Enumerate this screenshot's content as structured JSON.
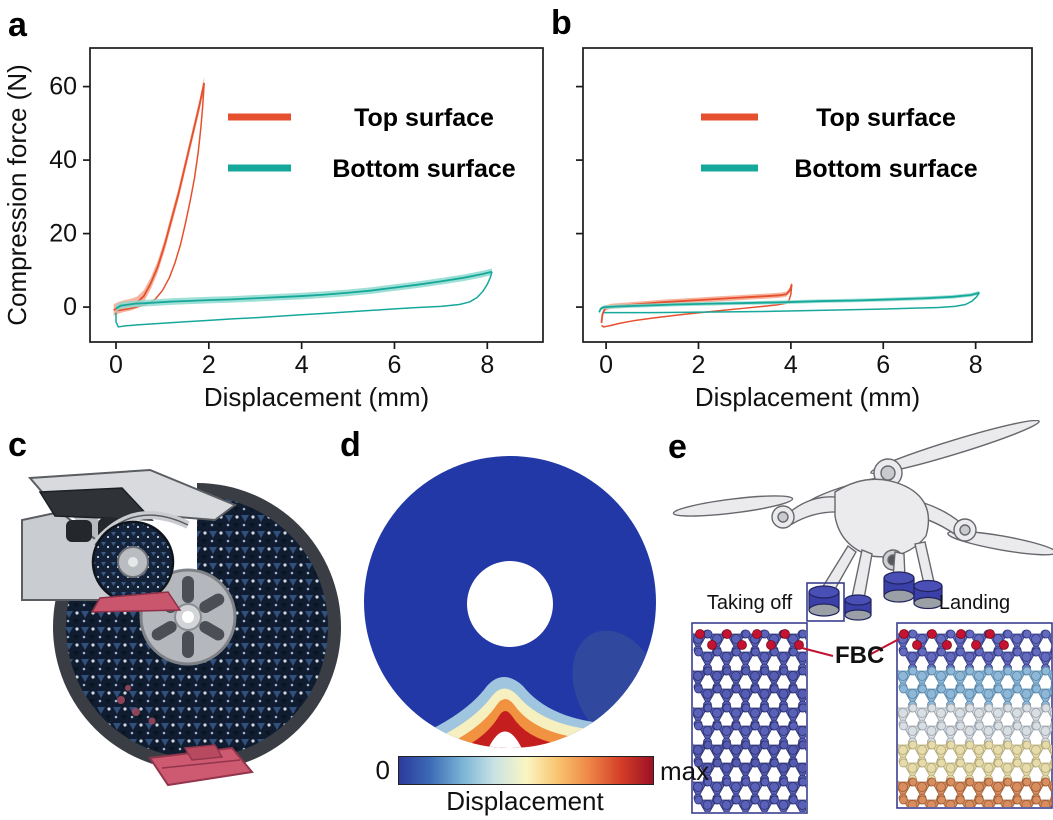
{
  "panel_labels": {
    "a": "a",
    "b": "b",
    "c": "c",
    "d": "d",
    "e": "e"
  },
  "colors": {
    "top_surface": "#e6502e",
    "top_band": "#f5a78f",
    "bottom_surface": "#16a89a",
    "bottom_band": "#8edacf",
    "fbc_red": "#c41230",
    "box_navy": "#3a3f8f",
    "foot_blue": "#3b3fa8",
    "tire_navy": "#101d30",
    "ramp_red": "#cd5a70",
    "fea_blue": "#2138a6"
  },
  "chart_data": [
    {
      "panel": "a",
      "type": "line",
      "title": "",
      "xlabel": "Displacement (mm)",
      "ylabel": "Compression force (N)",
      "xlim": [
        -0.56,
        9.2
      ],
      "ylim": [
        -9.5,
        70.5
      ],
      "xticks": [
        0,
        2,
        4,
        6,
        8
      ],
      "yticks": [
        0,
        20,
        40,
        60
      ],
      "grid": false,
      "legend_position": "upper right inside",
      "series": [
        {
          "name": "Top surface",
          "color": "#e6502e",
          "band_color": "#f5a78f",
          "band": 1.6,
          "loading": [
            [
              -0.05,
              -0.8
            ],
            [
              0.05,
              -0.2
            ],
            [
              0.15,
              0.2
            ],
            [
              0.3,
              0.6
            ],
            [
              0.45,
              1.2
            ],
            [
              0.6,
              3.0
            ],
            [
              0.75,
              6.5
            ],
            [
              0.9,
              11
            ],
            [
              1.05,
              17
            ],
            [
              1.2,
              24
            ],
            [
              1.35,
              31
            ],
            [
              1.5,
              39
            ],
            [
              1.65,
              47
            ],
            [
              1.8,
              55
            ],
            [
              1.9,
              61
            ]
          ],
          "unloading": [
            [
              1.9,
              61
            ],
            [
              1.87,
              55
            ],
            [
              1.83,
              49
            ],
            [
              1.77,
              42
            ],
            [
              1.69,
              35
            ],
            [
              1.6,
              29
            ],
            [
              1.5,
              23
            ],
            [
              1.39,
              17
            ],
            [
              1.27,
              12
            ],
            [
              1.15,
              8
            ],
            [
              1.0,
              4.5
            ],
            [
              0.85,
              2.2
            ],
            [
              0.7,
              1.0
            ],
            [
              0.5,
              0.2
            ],
            [
              0.3,
              -0.4
            ],
            [
              0.12,
              -0.8
            ],
            [
              0.0,
              -1.0
            ]
          ]
        },
        {
          "name": "Bottom surface",
          "color": "#16a89a",
          "band_color": "#8edacf",
          "band": 0.9,
          "loading": [
            [
              0,
              -0.4
            ],
            [
              0.1,
              0.4
            ],
            [
              0.4,
              0.9
            ],
            [
              0.8,
              1.2
            ],
            [
              1.2,
              1.5
            ],
            [
              1.6,
              1.7
            ],
            [
              2.0,
              1.9
            ],
            [
              2.5,
              2.1
            ],
            [
              3.0,
              2.4
            ],
            [
              3.5,
              2.7
            ],
            [
              4.0,
              3.0
            ],
            [
              4.5,
              3.4
            ],
            [
              5.0,
              3.9
            ],
            [
              5.5,
              4.5
            ],
            [
              6.0,
              5.3
            ],
            [
              6.5,
              6.1
            ],
            [
              7.0,
              7.0
            ],
            [
              7.5,
              8.0
            ],
            [
              7.9,
              9.0
            ],
            [
              8.1,
              9.6
            ]
          ],
          "unloading": [
            [
              8.1,
              9.6
            ],
            [
              8.07,
              8.2
            ],
            [
              8.0,
              6.2
            ],
            [
              7.9,
              4.2
            ],
            [
              7.78,
              2.6
            ],
            [
              7.62,
              1.4
            ],
            [
              7.4,
              0.7
            ],
            [
              7.0,
              0.2
            ],
            [
              6.5,
              -0.1
            ],
            [
              6.0,
              -0.5
            ],
            [
              5.5,
              -0.9
            ],
            [
              5.0,
              -1.3
            ],
            [
              4.5,
              -1.7
            ],
            [
              4.0,
              -2.1
            ],
            [
              3.5,
              -2.5
            ],
            [
              3.0,
              -2.9
            ],
            [
              2.5,
              -3.2
            ],
            [
              2.0,
              -3.6
            ],
            [
              1.5,
              -4.0
            ],
            [
              1.0,
              -4.4
            ],
            [
              0.5,
              -4.8
            ],
            [
              0.2,
              -5.1
            ],
            [
              0.05,
              -5.4
            ],
            [
              0.0,
              -4.0
            ],
            [
              0.0,
              -1.5
            ]
          ]
        }
      ]
    },
    {
      "panel": "b",
      "type": "line",
      "title": "",
      "xlabel": "Displacement (mm)",
      "ylabel": "",
      "xlim": [
        -0.5,
        9.22
      ],
      "ylim": [
        -9.5,
        70.5
      ],
      "xticks": [
        0,
        2,
        4,
        6,
        8
      ],
      "yticks": [
        0,
        20,
        40,
        60
      ],
      "grid": false,
      "legend_position": "upper right inside",
      "series": [
        {
          "name": "Top surface",
          "color": "#e6502e",
          "band_color": "#f5a78f",
          "band": 0.7,
          "loading": [
            [
              -0.1,
              -4.3
            ],
            [
              -0.08,
              -2.0
            ],
            [
              -0.02,
              -0.3
            ],
            [
              0.1,
              0.2
            ],
            [
              0.4,
              0.5
            ],
            [
              0.8,
              0.9
            ],
            [
              1.2,
              1.3
            ],
            [
              1.6,
              1.6
            ],
            [
              2.0,
              1.9
            ],
            [
              2.4,
              2.2
            ],
            [
              2.8,
              2.5
            ],
            [
              3.2,
              2.8
            ],
            [
              3.5,
              3.0
            ],
            [
              3.75,
              3.2
            ],
            [
              3.9,
              3.5
            ],
            [
              3.98,
              4.6
            ],
            [
              4.02,
              6.2
            ]
          ],
          "unloading": [
            [
              4.02,
              6.2
            ],
            [
              4.0,
              3.5
            ],
            [
              3.96,
              1.8
            ],
            [
              3.88,
              1.0
            ],
            [
              3.7,
              0.6
            ],
            [
              3.4,
              0.2
            ],
            [
              3.0,
              -0.3
            ],
            [
              2.6,
              -0.8
            ],
            [
              2.2,
              -1.3
            ],
            [
              1.8,
              -1.8
            ],
            [
              1.4,
              -2.4
            ],
            [
              1.0,
              -3.0
            ],
            [
              0.6,
              -3.7
            ],
            [
              0.3,
              -4.4
            ],
            [
              0.1,
              -5.0
            ],
            [
              -0.05,
              -5.4
            ],
            [
              -0.1,
              -5.0
            ]
          ]
        },
        {
          "name": "Bottom surface",
          "color": "#16a89a",
          "band_color": "#8edacf",
          "band": 0.5,
          "loading": [
            [
              -0.15,
              -1.4
            ],
            [
              -0.12,
              -0.5
            ],
            [
              -0.05,
              0.0
            ],
            [
              0.3,
              0.2
            ],
            [
              0.8,
              0.4
            ],
            [
              1.5,
              0.7
            ],
            [
              2.2,
              0.9
            ],
            [
              3.0,
              1.1
            ],
            [
              3.8,
              1.3
            ],
            [
              4.6,
              1.6
            ],
            [
              5.4,
              1.8
            ],
            [
              6.2,
              2.1
            ],
            [
              6.9,
              2.4
            ],
            [
              7.5,
              2.8
            ],
            [
              7.9,
              3.3
            ],
            [
              8.08,
              3.9
            ]
          ],
          "unloading": [
            [
              8.08,
              3.9
            ],
            [
              8.02,
              2.8
            ],
            [
              7.92,
              1.6
            ],
            [
              7.78,
              0.7
            ],
            [
              7.55,
              0.2
            ],
            [
              7.2,
              -0.1
            ],
            [
              6.6,
              -0.3
            ],
            [
              5.8,
              -0.6
            ],
            [
              5.0,
              -0.8
            ],
            [
              4.2,
              -1.0
            ],
            [
              3.4,
              -1.2
            ],
            [
              2.6,
              -1.3
            ],
            [
              1.8,
              -1.4
            ],
            [
              1.0,
              -1.5
            ],
            [
              0.4,
              -1.5
            ],
            [
              -0.05,
              -1.5
            ]
          ]
        }
      ]
    }
  ],
  "panel_d": {
    "colorbar": {
      "min_label": "0",
      "max_label": "max",
      "title": "Displacement",
      "stops": [
        "#2c3a9e",
        "#3d6cb5",
        "#7ab4d6",
        "#c9e2e5",
        "#faf6c3",
        "#f9c46f",
        "#ee8546",
        "#d43d27",
        "#9c1127"
      ]
    }
  },
  "panel_e": {
    "taking_off": "Taking off",
    "landing": "Landing",
    "fbc": "FBC"
  }
}
